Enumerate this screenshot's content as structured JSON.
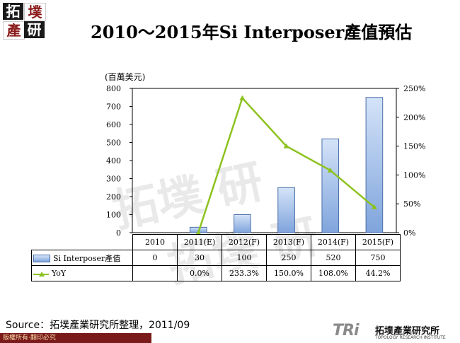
{
  "logo": {
    "chars": [
      "拓",
      "墣",
      "產",
      "研"
    ]
  },
  "title": "2010～2015年Si Interposer產值預估",
  "watermark_text": "拓墣 研",
  "chart_data": {
    "type": "bar",
    "unit_label": "(百萬美元)",
    "categories": [
      "2010",
      "2011(E)",
      "2012(F)",
      "2013(F)",
      "2014(F)",
      "2015(F)"
    ],
    "series": [
      {
        "name": "Si Interposer產值",
        "kind": "bar",
        "axis": "left",
        "values": [
          0,
          30,
          100,
          250,
          520,
          750
        ],
        "labels": [
          "0",
          "30",
          "100",
          "250",
          "520",
          "750"
        ]
      },
      {
        "name": "YoY",
        "kind": "line",
        "axis": "right",
        "values": [
          null,
          0.0,
          233.3,
          150.0,
          108.0,
          44.2
        ],
        "labels": [
          "",
          "0.0%",
          "233.3%",
          "150.0%",
          "108.0%",
          "44.2%"
        ]
      }
    ],
    "left_axis": {
      "min": 0,
      "max": 800,
      "ticks": [
        "0",
        "100",
        "200",
        "300",
        "400",
        "500",
        "600",
        "700",
        "800"
      ]
    },
    "right_axis": {
      "min": 0,
      "max": 250,
      "ticks": [
        "0%",
        "50%",
        "100%",
        "150%",
        "200%",
        "250%"
      ]
    },
    "colors": {
      "bar_fill_top": "#d4e3f8",
      "bar_fill_bottom": "#7fa4dc",
      "bar_stroke": "#4a6ea8",
      "line": "#8dc21f"
    },
    "grid": false
  },
  "source": "Source：拓墣產業研究所整理，2011/09",
  "footer": {
    "rights": "版權所有‧翻印必究",
    "brand_mark": "TRi",
    "brand_cn": "拓墣產業研究所",
    "brand_en": "TOPOLOGY RESEARCH INSTITUTE"
  }
}
